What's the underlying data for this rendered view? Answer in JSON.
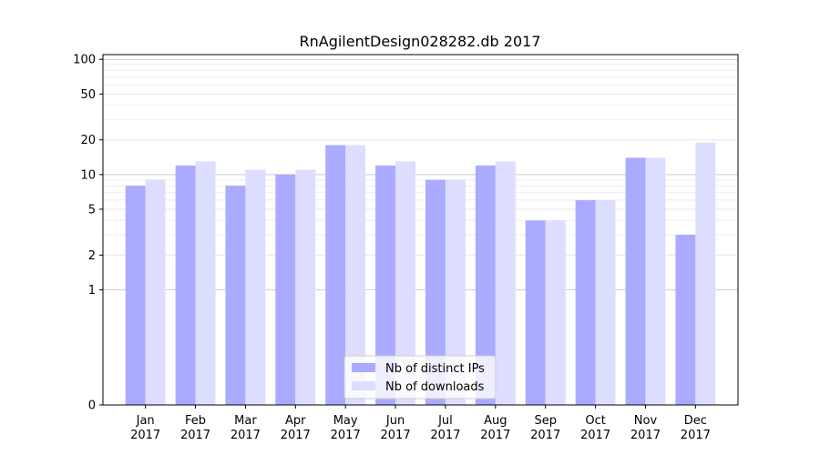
{
  "chart_data": {
    "type": "bar",
    "title": "RnAgilentDesign028282.db 2017",
    "xlabel": "",
    "ylabel": "",
    "y_scale": "symlog",
    "ylim": [
      0,
      110
    ],
    "y_ticks": [
      {
        "value": 0,
        "label": "0"
      },
      {
        "value": 1,
        "label": "1"
      },
      {
        "value": 2,
        "label": "2"
      },
      {
        "value": 5,
        "label": "5"
      },
      {
        "value": 10,
        "label": "10"
      },
      {
        "value": 20,
        "label": "20"
      },
      {
        "value": 50,
        "label": "50"
      },
      {
        "value": 100,
        "label": "100"
      }
    ],
    "categories": [
      {
        "month": "Jan",
        "year": "2017"
      },
      {
        "month": "Feb",
        "year": "2017"
      },
      {
        "month": "Mar",
        "year": "2017"
      },
      {
        "month": "Apr",
        "year": "2017"
      },
      {
        "month": "May",
        "year": "2017"
      },
      {
        "month": "Jun",
        "year": "2017"
      },
      {
        "month": "Jul",
        "year": "2017"
      },
      {
        "month": "Aug",
        "year": "2017"
      },
      {
        "month": "Sep",
        "year": "2017"
      },
      {
        "month": "Oct",
        "year": "2017"
      },
      {
        "month": "Nov",
        "year": "2017"
      },
      {
        "month": "Dec",
        "year": "2017"
      }
    ],
    "series": [
      {
        "name": "Nb of distinct IPs",
        "color": "#aaaaff",
        "values": [
          8,
          12,
          8,
          10,
          18,
          12,
          9,
          12,
          4,
          6,
          14,
          3
        ]
      },
      {
        "name": "Nb of downloads",
        "color": "#ddddff",
        "values": [
          9,
          13,
          11,
          11,
          18,
          13,
          9,
          13,
          4,
          6,
          14,
          19
        ]
      }
    ],
    "grid": true,
    "legend_position": "bottom-center"
  }
}
